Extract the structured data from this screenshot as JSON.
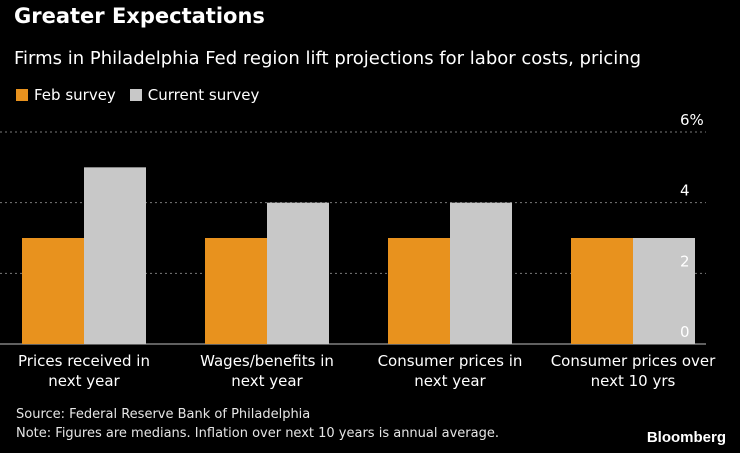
{
  "title": "Greater Expectations",
  "subtitle": "Firms in Philadelphia Fed region lift projections for labor costs, pricing",
  "legend": [
    {
      "label": "Feb survey",
      "color": "#e8921e"
    },
    {
      "label": "Current survey",
      "color": "#c8c8c8"
    }
  ],
  "chart_data": {
    "type": "bar",
    "categories": [
      [
        "Prices received in",
        "next year"
      ],
      [
        "Wages/benefits in",
        "next year"
      ],
      [
        "Consumer prices in",
        "next year"
      ],
      [
        "Consumer prices over",
        "next 10 yrs"
      ]
    ],
    "series": [
      {
        "name": "Feb survey",
        "values": [
          3,
          3,
          3,
          3
        ],
        "color": "#e8921e"
      },
      {
        "name": "Current survey",
        "values": [
          5,
          4,
          4,
          3
        ],
        "color": "#c8c8c8"
      }
    ],
    "ylim": [
      0,
      6
    ],
    "yticks": [
      0,
      2,
      4,
      6
    ],
    "ytick_labels": [
      "0",
      "2",
      "4",
      "6%"
    ],
    "y_axis_side": "right",
    "grid": true
  },
  "footer": {
    "source": "Source: Federal Reserve Bank of Philadelphia",
    "note": "Note: Figures are medians. Inflation over next 10 years is annual average."
  },
  "brand": "Bloomberg"
}
